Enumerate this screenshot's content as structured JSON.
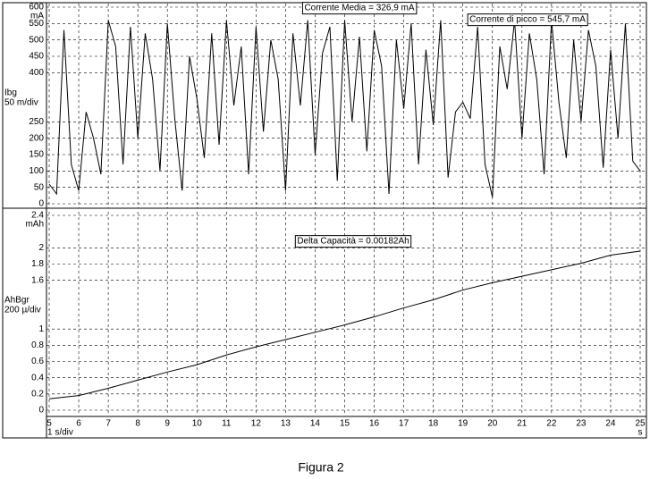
{
  "caption": "Figura 2",
  "chart_data": [
    {
      "type": "line",
      "y_label": "Ibg",
      "y_scale_label": "50 m/div",
      "y_unit": "mA",
      "annotations": [
        {
          "text": "Corrente Media = 326,9 mA"
        },
        {
          "text": "Corrente di picco =  545,7 mA"
        }
      ],
      "xlim": [
        5,
        25
      ],
      "ylim": [
        0,
        600
      ],
      "yticks": [
        0,
        50,
        100,
        150,
        200,
        250,
        400,
        450,
        500,
        550,
        600
      ],
      "grid": true,
      "x": [
        5,
        5.25,
        5.5,
        5.75,
        6,
        6.25,
        6.5,
        6.75,
        7,
        7.25,
        7.5,
        7.75,
        8,
        8.25,
        8.5,
        8.75,
        9,
        9.25,
        9.5,
        9.75,
        10,
        10.25,
        10.5,
        10.75,
        11,
        11.25,
        11.5,
        11.75,
        12,
        12.25,
        12.5,
        12.75,
        13,
        13.25,
        13.5,
        13.75,
        14,
        14.25,
        14.5,
        14.75,
        15,
        15.25,
        15.5,
        15.75,
        16,
        16.25,
        16.5,
        16.75,
        17,
        17.25,
        17.5,
        17.75,
        18,
        18.25,
        18.5,
        18.75,
        19,
        19.25,
        19.5,
        19.75,
        20,
        20.25,
        20.5,
        20.75,
        21,
        21.25,
        21.5,
        21.75,
        22,
        22.25,
        22.5,
        22.75,
        23,
        23.25,
        23.5,
        23.75,
        24,
        24.25,
        24.5,
        24.75,
        25
      ],
      "series": [
        {
          "color": "#000000",
          "values": [
            60,
            30,
            530,
            120,
            40,
            280,
            200,
            90,
            560,
            480,
            120,
            540,
            200,
            520,
            380,
            100,
            550,
            260,
            40,
            450,
            320,
            140,
            520,
            180,
            560,
            300,
            480,
            90,
            540,
            220,
            500,
            380,
            40,
            520,
            300,
            560,
            150,
            460,
            540,
            70,
            560,
            250,
            510,
            160,
            530,
            420,
            30,
            500,
            290,
            550,
            120,
            470,
            240,
            560,
            80,
            280,
            310,
            260,
            540,
            120,
            20,
            480,
            350,
            560,
            200,
            520,
            380,
            90,
            560,
            310,
            140,
            500,
            250,
            530,
            420,
            110,
            470,
            200,
            550,
            130,
            100
          ]
        }
      ]
    },
    {
      "type": "line",
      "y_label": "AhBgr",
      "y_scale_label": "200 µ/div",
      "y_unit": "mAh",
      "annotations": [
        {
          "text": "Delta Capacità = 0.00182Ah"
        }
      ],
      "x_label": "1 s/div",
      "x_unit": "s",
      "xlim": [
        5,
        25
      ],
      "ylim": [
        0,
        2.4
      ],
      "xticks": [
        5,
        6,
        7,
        8,
        9,
        10,
        11,
        12,
        13,
        14,
        15,
        16,
        17,
        18,
        19,
        20,
        21,
        22,
        23,
        24,
        25
      ],
      "yticks": [
        0,
        0.2,
        0.4,
        0.6,
        0.8,
        1,
        1.6,
        1.8,
        2,
        2.4
      ],
      "grid": true,
      "x": [
        5,
        6,
        7,
        8,
        9,
        10,
        11,
        12,
        13,
        14,
        15,
        16,
        17,
        18,
        19,
        20,
        21,
        22,
        23,
        24,
        25
      ],
      "series": [
        {
          "color": "#000000",
          "values": [
            0.14,
            0.18,
            0.27,
            0.37,
            0.47,
            0.56,
            0.68,
            0.78,
            0.87,
            0.96,
            1.05,
            1.15,
            1.26,
            1.36,
            1.48,
            1.57,
            1.65,
            1.73,
            1.81,
            1.91,
            1.96
          ]
        }
      ]
    }
  ]
}
